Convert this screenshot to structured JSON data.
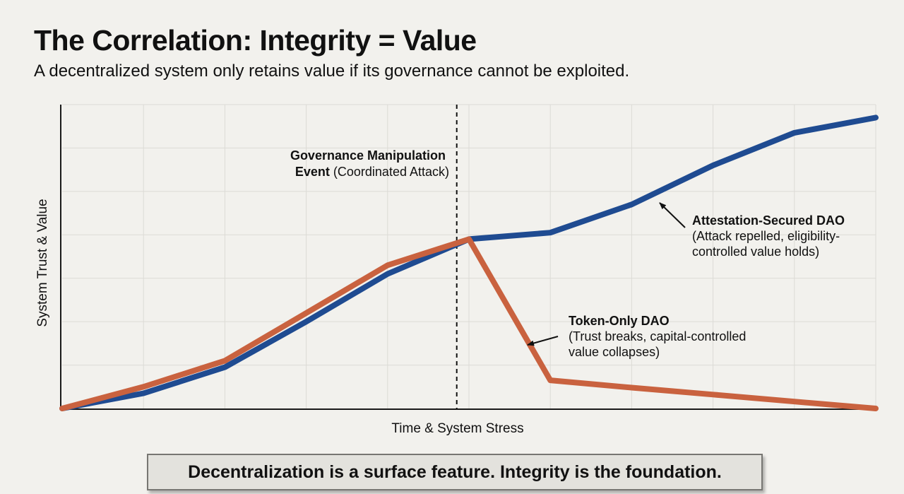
{
  "header": {
    "title": "The Correlation: Integrity = Value",
    "subtitle": "A decentralized system only retains value if its governance cannot be exploited."
  },
  "chart_data": {
    "type": "line",
    "title": "The Correlation: Integrity = Value",
    "xlabel": "Time & System Stress",
    "ylabel": "System Trust & Value",
    "xlim": [
      0,
      10
    ],
    "ylim": [
      0,
      7
    ],
    "grid": true,
    "x": [
      0,
      1,
      2,
      3,
      4,
      5,
      6,
      7,
      8,
      9,
      10
    ],
    "series": [
      {
        "name": "Attestation-Secured DAO",
        "color": "#1f4b91",
        "values": [
          0,
          0.35,
          0.95,
          2.0,
          3.1,
          3.9,
          4.05,
          4.7,
          5.6,
          6.35,
          6.7
        ]
      },
      {
        "name": "Token-Only DAO",
        "color": "#c9623f",
        "values": [
          0,
          0.5,
          1.1,
          2.2,
          3.3,
          3.9,
          0.65,
          0.48,
          0.32,
          0.16,
          0
        ]
      }
    ],
    "event": {
      "x": 4.85,
      "label_bold_line1": "Governance Manipulation",
      "label_bold_line2": "Event",
      "label_normal_line2": " (Coordinated Attack)"
    },
    "annotations": [
      {
        "series": "Attestation-Secured DAO",
        "title": "Attestation-Secured DAO",
        "lines": [
          "(Attack repelled, eligibility-",
          "controlled value holds)"
        ]
      },
      {
        "series": "Token-Only DAO",
        "title": "Token-Only DAO",
        "lines": [
          "(Trust breaks, capital-controlled",
          "value collapses)"
        ]
      }
    ]
  },
  "footer": {
    "text": "Decentralization is a surface feature. Integrity is the foundation."
  }
}
